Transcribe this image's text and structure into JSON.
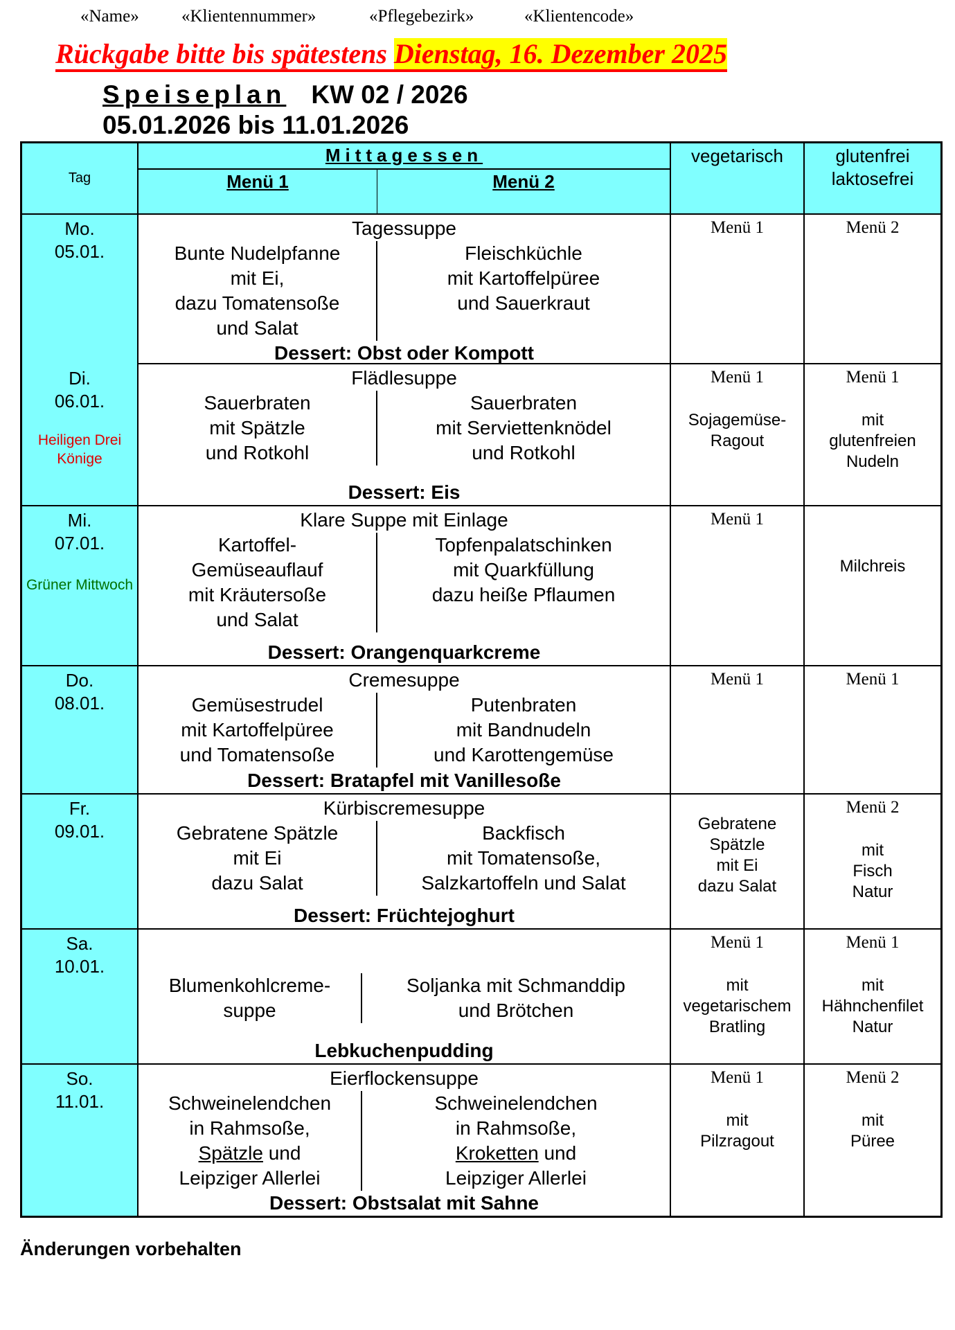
{
  "placeholders": [
    "«Name»",
    "«Klientennummer»",
    "«Pflegebezirk»",
    "«Klientencode»"
  ],
  "deadline": {
    "prefix": "Rückgabe bitte bis spätestens ",
    "date": "Dienstag, 16. Dezember 2025",
    "highlight_color": "#ffff00",
    "text_color": "#ff0000"
  },
  "title": {
    "label": "Speiseplan",
    "week": "KW 02 / 2026",
    "range": "05.01.2026 bis 11.01.2026"
  },
  "header": {
    "tag": "Tag",
    "mittagessen": "Mittagessen",
    "menu1": "Menü 1",
    "menu2": "Menü 2",
    "veg": "vegetarisch",
    "gf1": "glutenfrei",
    "gf2": "laktosefrei",
    "color": "#80ffff"
  },
  "days": [
    {
      "day": "Mo.",
      "date": "05.01.",
      "note": "",
      "soup": "Tagessuppe",
      "menu1": [
        "Bunte Nudelpfanne",
        "mit Ei,",
        "dazu Tomatensoße",
        "und Salat"
      ],
      "menu2": [
        "Fleischküchle",
        "mit Kartoffelpüree",
        "und Sauerkraut"
      ],
      "dessert": "Dessert: Obst oder Kompott",
      "veg": {
        "ref": "Menü 1",
        "lines": []
      },
      "gf": {
        "ref": "Menü 2",
        "lines": []
      }
    },
    {
      "day": "Di.",
      "date": "06.01.",
      "note": "Heiligen Drei Könige",
      "note_color": "#e00000",
      "soup": "Flädlesuppe",
      "menu1": [
        "Sauerbraten",
        "mit Spätzle",
        "und Rotkohl"
      ],
      "menu2": [
        "Sauerbraten",
        "mit Serviettenknödel",
        "und Rotkohl"
      ],
      "dessert": "Dessert: Eis",
      "veg": {
        "ref": "Menü 1",
        "lines": [
          "Sojagemüse-",
          "Ragout"
        ]
      },
      "gf": {
        "ref": "Menü 1",
        "lines": [
          "mit",
          "glutenfreien",
          "Nudeln"
        ]
      }
    },
    {
      "day": "Mi.",
      "date": "07.01.",
      "note": "Grüner Mittwoch",
      "note_color": "#007000",
      "soup": "Klare Suppe mit Einlage",
      "menu1": [
        "Kartoffel-",
        "Gemüseauflauf",
        "mit Kräutersoße",
        "und Salat"
      ],
      "menu2": [
        "Topfenpalatschinken",
        "mit Quarkfüllung",
        "dazu heiße Pflaumen"
      ],
      "dessert": "Dessert: Orangenquarkcreme",
      "veg": {
        "ref": "Menü 1",
        "lines": []
      },
      "gf": {
        "ref": "",
        "lines": [
          "Milchreis"
        ]
      }
    },
    {
      "day": "Do.",
      "date": "08.01.",
      "note": "",
      "soup": "Cremesuppe",
      "menu1": [
        "Gemüsestrudel",
        "mit Kartoffelpüree",
        "und Tomatensoße"
      ],
      "menu2": [
        "Putenbraten",
        "mit Bandnudeln",
        "und Karottengemüse"
      ],
      "dessert": "Dessert: Bratapfel mit Vanillesoße",
      "veg": {
        "ref": "Menü 1",
        "lines": []
      },
      "gf": {
        "ref": "Menü 1",
        "lines": []
      }
    },
    {
      "day": "Fr.",
      "date": "09.01.",
      "note": "",
      "soup": "Kürbiscremesuppe",
      "menu1": [
        "Gebratene Spätzle",
        "mit Ei",
        "dazu Salat"
      ],
      "menu2": [
        "Backfisch",
        "mit Tomatensoße,",
        "Salzkartoffeln und Salat"
      ],
      "dessert": "Dessert: Früchtejoghurt",
      "veg": {
        "ref": "",
        "lines": [
          "Gebratene",
          "Spätzle",
          "mit Ei",
          "dazu Salat"
        ]
      },
      "gf": {
        "ref": "Menü 2",
        "lines": [
          "mit",
          "Fisch",
          "Natur"
        ]
      }
    },
    {
      "day": "Sa.",
      "date": "10.01.",
      "note": "",
      "soup": "",
      "menu1": [
        "Blumenkohlcreme-",
        "suppe"
      ],
      "menu2": [
        "Soljanka mit Schmanddip",
        "und Brötchen"
      ],
      "dessert": "Lebkuchenpudding",
      "veg": {
        "ref": "Menü 1",
        "lines": [
          "mit",
          "vegetarischem",
          "Bratling"
        ]
      },
      "gf": {
        "ref": "Menü 1",
        "lines": [
          "mit",
          "Hähnchenfilet",
          "Natur"
        ]
      }
    },
    {
      "day": "So.",
      "date": "11.01.",
      "note": "",
      "soup": "Eierflockensuppe",
      "menu1": [
        "Schweinelendchen",
        "in Rahmsoße,",
        {
          "u": "Spätzle",
          "t": " und"
        },
        "Leipziger Allerlei"
      ],
      "menu2": [
        "Schweinelendchen",
        "in Rahmsoße,",
        {
          "u": "Kroketten",
          "t": " und"
        },
        "Leipziger Allerlei"
      ],
      "dessert": "Dessert: Obstsalat mit Sahne",
      "veg": {
        "ref": "Menü 1",
        "lines": [
          "mit",
          "Pilzragout"
        ]
      },
      "gf": {
        "ref": "Menü 2",
        "lines": [
          "mit",
          "Püree"
        ]
      }
    }
  ],
  "footer": "Änderungen vorbehalten"
}
